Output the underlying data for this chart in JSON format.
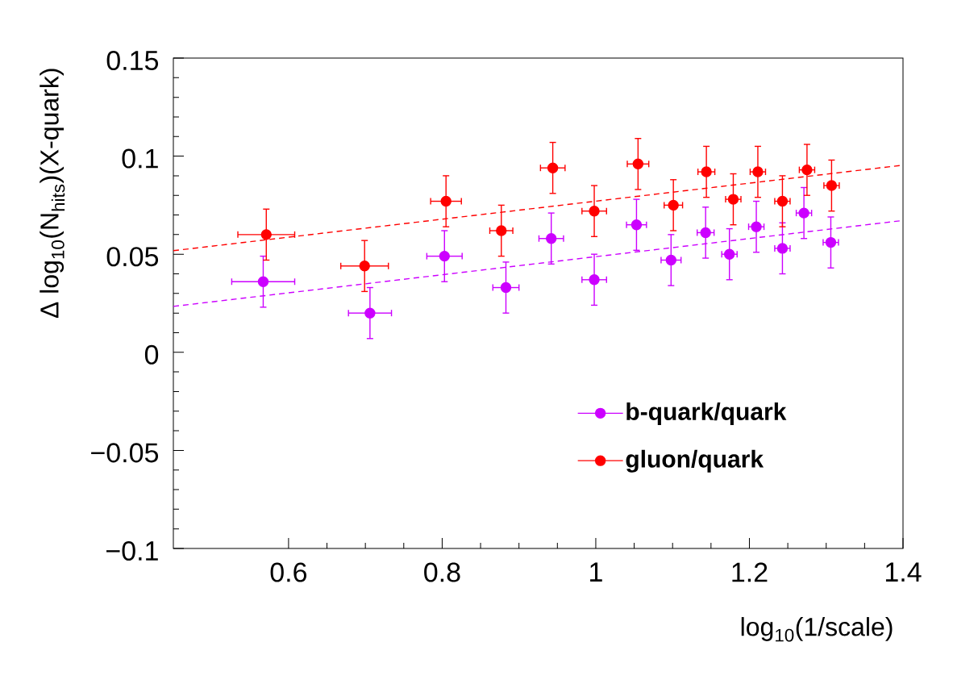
{
  "chart_data": {
    "type": "scatter",
    "xlabel": "log$_{10}$(1/scale)",
    "ylabel": "Δ log$_{10}$(N$_{hits}$)(X-quark)",
    "xlim": [
      0.45,
      1.4
    ],
    "ylim": [
      -0.1,
      0.15
    ],
    "xticks": [
      0.6,
      0.8,
      1,
      1.2,
      1.4
    ],
    "yticks": [
      {
        "value": -0.1,
        "label": "−0.1"
      },
      {
        "value": -0.05,
        "label": "−0.05"
      },
      0,
      0.05,
      0.1,
      0.15
    ],
    "grid": false,
    "legend": "bottom right",
    "marker": "circle",
    "series": [
      {
        "name": "b-quark/quark",
        "color": "#cc00ff",
        "x": [
          0.567,
          0.706,
          0.803,
          0.883,
          0.942,
          0.998,
          1.053,
          1.098,
          1.143,
          1.174,
          1.209,
          1.243,
          1.271,
          1.306
        ],
        "values": [
          0.036,
          0.02,
          0.049,
          0.033,
          0.058,
          0.037,
          0.065,
          0.047,
          0.061,
          0.05,
          0.064,
          0.053,
          0.071,
          0.056
        ],
        "errors": [
          0.013,
          0.013,
          0.013,
          0.013,
          0.013,
          0.013,
          0.013,
          0.013,
          0.013,
          0.013,
          0.013,
          0.013,
          0.013,
          0.013
        ],
        "xerrors": [
          0.041,
          0.028,
          0.023,
          0.017,
          0.016,
          0.016,
          0.013,
          0.013,
          0.011,
          0.01,
          0.01,
          0.01,
          0.01,
          0.01
        ],
        "line_style": "none"
      },
      {
        "name": "gluon/quark",
        "color": "#ff0000",
        "x": [
          0.571,
          0.699,
          0.805,
          0.877,
          0.944,
          0.998,
          1.055,
          1.101,
          1.144,
          1.179,
          1.211,
          1.243,
          1.275,
          1.307
        ],
        "values": [
          0.06,
          0.044,
          0.077,
          0.062,
          0.094,
          0.072,
          0.096,
          0.075,
          0.092,
          0.078,
          0.092,
          0.077,
          0.093,
          0.085
        ],
        "errors": [
          0.013,
          0.013,
          0.013,
          0.013,
          0.013,
          0.013,
          0.013,
          0.013,
          0.013,
          0.013,
          0.013,
          0.013,
          0.013,
          0.013
        ],
        "xerrors": [
          0.037,
          0.031,
          0.02,
          0.015,
          0.016,
          0.016,
          0.014,
          0.012,
          0.011,
          0.01,
          0.01,
          0.01,
          0.01,
          0.01
        ],
        "line_style": "none"
      },
      {
        "type": "line",
        "color": "#cc00ff",
        "x": [
          0.45,
          1.4
        ],
        "values": [
          0.0234,
          0.0672
        ],
        "marker": "none",
        "line_style": "dashed"
      },
      {
        "type": "line",
        "color": "#ff0000",
        "x": [
          0.45,
          1.4
        ],
        "values": [
          0.0518,
          0.0954
        ],
        "marker": "none",
        "line_style": "dashed"
      }
    ]
  }
}
